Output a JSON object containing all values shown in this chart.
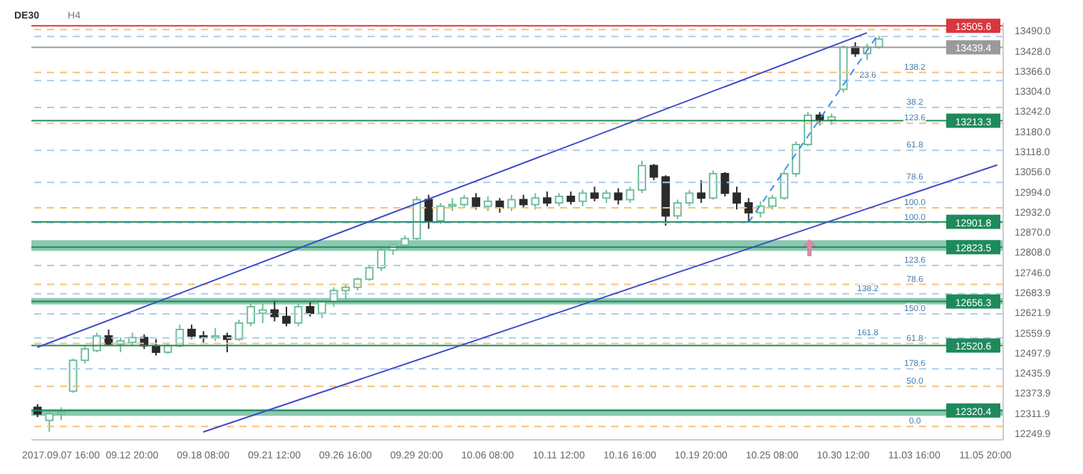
{
  "chart_data": {
    "type": "candlestick",
    "title": "DE30",
    "subtitle": "H4",
    "categories": [
      null,
      null,
      "2017.09.07  16:00",
      null,
      null,
      null,
      null,
      null,
      "09.12  20:00",
      null,
      null,
      null,
      null,
      null,
      "09.18  08:00",
      null,
      null,
      null,
      null,
      null,
      "09.21  12:00",
      null,
      null,
      null,
      null,
      null,
      "09.26  16:00",
      null,
      null,
      null,
      null,
      null,
      "09.29  20:00",
      null,
      null,
      null,
      null,
      null,
      "10.06  08:00",
      null,
      null,
      null,
      null,
      null,
      "10.11  12:00",
      null,
      null,
      null,
      null,
      null,
      "10.16  16:00",
      null,
      null,
      null,
      null,
      null,
      "10.19  20:00",
      null,
      null,
      null,
      null,
      null,
      "10.25  08:00",
      null,
      null,
      null,
      null,
      null,
      "10.30  12:00",
      null,
      null,
      null,
      null,
      null,
      "11.03  16:00",
      null,
      null,
      null,
      null,
      null,
      "11.05  20:00",
      null
    ],
    "ohlc": [
      [
        12330,
        12340,
        12300,
        12310
      ],
      [
        12290,
        12320,
        12255,
        12310
      ],
      [
        12310,
        12330,
        12290,
        12315
      ],
      [
        12380,
        12480,
        12375,
        12475
      ],
      [
        12475,
        12520,
        12465,
        12510
      ],
      [
        12505,
        12560,
        12500,
        12550
      ],
      [
        12550,
        12570,
        12520,
        12525
      ],
      [
        12525,
        12545,
        12500,
        12535
      ],
      [
        12530,
        12560,
        12520,
        12545
      ],
      [
        12545,
        12555,
        12510,
        12520
      ],
      [
        12520,
        12540,
        12490,
        12500
      ],
      [
        12500,
        12530,
        12495,
        12520
      ],
      [
        12520,
        12585,
        12515,
        12570
      ],
      [
        12570,
        12585,
        12540,
        12550
      ],
      [
        12550,
        12565,
        12530,
        12545
      ],
      [
        12545,
        12575,
        12535,
        12550
      ],
      [
        12550,
        12560,
        12500,
        12540
      ],
      [
        12540,
        12600,
        12535,
        12590
      ],
      [
        12590,
        12650,
        12580,
        12640
      ],
      [
        12620,
        12650,
        12590,
        12630
      ],
      [
        12630,
        12660,
        12595,
        12610
      ],
      [
        12610,
        12640,
        12580,
        12590
      ],
      [
        12590,
        12650,
        12580,
        12640
      ],
      [
        12640,
        12655,
        12610,
        12620
      ],
      [
        12620,
        12660,
        12605,
        12655
      ],
      [
        12655,
        12700,
        12640,
        12690
      ],
      [
        12690,
        12710,
        12660,
        12700
      ],
      [
        12700,
        12730,
        12690,
        12725
      ],
      [
        12725,
        12770,
        12720,
        12760
      ],
      [
        12760,
        12830,
        12750,
        12815
      ],
      [
        12815,
        12835,
        12800,
        12830
      ],
      [
        12830,
        12860,
        12820,
        12850
      ],
      [
        12850,
        12980,
        12845,
        12970
      ],
      [
        12970,
        12985,
        12880,
        12905
      ],
      [
        12905,
        12960,
        12895,
        12950
      ],
      [
        12950,
        12975,
        12935,
        12955
      ],
      [
        12955,
        12985,
        12945,
        12975
      ],
      [
        12975,
        12990,
        12940,
        12950
      ],
      [
        12950,
        12980,
        12935,
        12965
      ],
      [
        12965,
        12975,
        12930,
        12945
      ],
      [
        12945,
        12985,
        12935,
        12970
      ],
      [
        12970,
        12985,
        12945,
        12955
      ],
      [
        12955,
        12990,
        12940,
        12975
      ],
      [
        12975,
        12995,
        12950,
        12960
      ],
      [
        12960,
        12990,
        12950,
        12980
      ],
      [
        12980,
        12995,
        12955,
        12965
      ],
      [
        12965,
        13000,
        12950,
        12990
      ],
      [
        12990,
        13010,
        12965,
        12975
      ],
      [
        12975,
        13000,
        12960,
        12990
      ],
      [
        12990,
        13005,
        12955,
        12970
      ],
      [
        12970,
        13010,
        12960,
        13000
      ],
      [
        13000,
        13090,
        12990,
        13075
      ],
      [
        13075,
        13080,
        13030,
        13040
      ],
      [
        13040,
        13045,
        12890,
        12920
      ],
      [
        12920,
        12970,
        12910,
        12960
      ],
      [
        12960,
        13000,
        12950,
        12990
      ],
      [
        12990,
        13030,
        12960,
        12975
      ],
      [
        12975,
        13060,
        12970,
        13050
      ],
      [
        13050,
        13055,
        12980,
        12990
      ],
      [
        12990,
        13010,
        12940,
        12960
      ],
      [
        12960,
        12975,
        12900,
        12930
      ],
      [
        12930,
        12965,
        12915,
        12950
      ],
      [
        12950,
        12985,
        12940,
        12975
      ],
      [
        12975,
        13060,
        12970,
        13050
      ],
      [
        13050,
        13150,
        13040,
        13140
      ],
      [
        13140,
        13240,
        13135,
        13230
      ],
      [
        13230,
        13240,
        13200,
        13215
      ],
      [
        13215,
        13235,
        13200,
        13225
      ],
      [
        13310,
        13445,
        13300,
        13440
      ],
      [
        13440,
        13455,
        13410,
        13420
      ],
      [
        13420,
        13450,
        13400,
        13440
      ],
      [
        13440,
        13475,
        13435,
        13465
      ],
      null,
      null,
      null,
      null,
      null,
      null,
      null,
      null,
      null,
      null
    ],
    "series": [
      {
        "type": "line",
        "color": "#3f48c8",
        "values": [
          12515,
          null,
          null,
          null,
          null,
          null,
          null,
          null,
          null,
          null,
          null,
          null,
          null,
          null,
          null,
          null,
          null,
          null,
          null,
          null,
          null,
          null,
          null,
          null,
          null,
          null,
          null,
          null,
          null,
          null,
          null,
          null,
          null,
          null,
          null,
          null,
          null,
          null,
          null,
          null,
          null,
          null,
          null,
          null,
          null,
          null,
          null,
          null,
          null,
          null,
          null,
          null,
          null,
          null,
          null,
          null,
          null,
          null,
          null,
          null,
          null,
          null,
          null,
          null,
          null,
          null,
          null,
          null,
          null,
          null,
          13484,
          null,
          null,
          null,
          null,
          null,
          null,
          null,
          null,
          null,
          null,
          null
        ]
      },
      {
        "type": "line",
        "color": "#3f48c8",
        "values": [
          null,
          null,
          null,
          null,
          null,
          null,
          null,
          null,
          null,
          null,
          null,
          null,
          null,
          null,
          12254,
          null,
          null,
          null,
          null,
          null,
          null,
          null,
          null,
          null,
          null,
          null,
          null,
          null,
          null,
          null,
          null,
          null,
          null,
          null,
          null,
          null,
          null,
          null,
          null,
          null,
          null,
          null,
          null,
          null,
          null,
          null,
          null,
          null,
          null,
          null,
          null,
          null,
          null,
          null,
          null,
          null,
          null,
          null,
          null,
          null,
          null,
          null,
          null,
          null,
          null,
          null,
          null,
          null,
          null,
          null,
          null,
          null,
          null,
          null,
          null,
          null,
          null,
          null,
          null,
          null,
          null,
          13077
        ]
      },
      {
        "type": "line",
        "color": "#3d8fe0",
        "line_style": "dashed",
        "values": [
          null,
          null,
          null,
          null,
          null,
          null,
          null,
          null,
          null,
          null,
          null,
          null,
          null,
          null,
          null,
          null,
          null,
          null,
          null,
          null,
          null,
          null,
          null,
          null,
          null,
          null,
          null,
          null,
          null,
          null,
          null,
          null,
          null,
          null,
          null,
          null,
          null,
          null,
          null,
          null,
          null,
          null,
          null,
          null,
          null,
          null,
          null,
          null,
          null,
          null,
          null,
          null,
          null,
          null,
          null,
          null,
          null,
          null,
          null,
          null,
          12899,
          null,
          null,
          null,
          null,
          null,
          null,
          null,
          null,
          null,
          null,
          13482,
          null,
          null,
          null,
          null,
          null,
          null,
          null,
          null,
          null,
          null
        ]
      }
    ],
    "annotations": [
      {
        "text": "138.2",
        "y": 13362
      },
      {
        "text": "123.6",
        "y": 13205
      },
      {
        "text": "100.0",
        "y": 12945
      },
      {
        "text": "78.6",
        "y": 12709
      },
      {
        "text": "61.8",
        "y": 12527
      },
      {
        "text": "50.0",
        "y": 12395
      },
      {
        "text": "0.0",
        "y": 12271
      },
      {
        "text": "23.6",
        "y": 13337
      },
      {
        "text": "38.2",
        "y": 13254
      },
      {
        "text": "61.8",
        "y": 13122
      },
      {
        "text": "78.6",
        "y": 13023
      },
      {
        "text": "100.0",
        "y": 12899
      },
      {
        "text": "123.6",
        "y": 12767
      },
      {
        "text": "138.2",
        "y": 12680
      },
      {
        "text": "150.0",
        "y": 12618
      },
      {
        "text": "161.8",
        "y": 12544
      },
      {
        "text": "178.6",
        "y": 12449
      }
    ],
    "ylim": [
      12230,
      13515
    ],
    "yticks": [
      {
        "value": 13490,
        "label": "13490.0"
      },
      {
        "value": 13428,
        "label": "13428.0"
      },
      {
        "value": 13366,
        "label": "13366.0"
      },
      {
        "value": 13304,
        "label": "13304.0"
      },
      {
        "value": 13242,
        "label": "13242.0"
      },
      {
        "value": 13180,
        "label": "13180.0"
      },
      {
        "value": 13118,
        "label": "13118.0"
      },
      {
        "value": 13056,
        "label": "13056.0"
      },
      {
        "value": 12994,
        "label": "12994.0"
      },
      {
        "value": 12932,
        "label": "12932.0"
      },
      {
        "value": 12870,
        "label": "12870.0"
      },
      {
        "value": 12808,
        "label": "12808.0"
      },
      {
        "value": 12746,
        "label": "12746.0"
      },
      {
        "value": 12683.9,
        "label": "12683.9"
      },
      {
        "value": 12621.9,
        "label": "12621.9"
      },
      {
        "value": 12559.9,
        "label": "12559.9"
      },
      {
        "value": 12497.9,
        "label": "12497.9"
      },
      {
        "value": 12435.9,
        "label": "12435.9"
      },
      {
        "value": 12373.9,
        "label": "12373.9"
      },
      {
        "value": 12311.9,
        "label": "12311.9"
      },
      {
        "value": 12249.9,
        "label": "12249.9"
      }
    ],
    "bands": [
      {
        "axis": "y",
        "from": 12812,
        "to": 12845,
        "color": "#7fc2a6"
      },
      {
        "axis": "y",
        "from": 12647,
        "to": 12667,
        "color": "#7fc2a6"
      },
      {
        "axis": "y",
        "from": 12304,
        "to": 12325,
        "color": "#7fc2a6"
      }
    ],
    "ref_lines": [
      {
        "axis": "y",
        "value": 13494,
        "color": "#f7c07a",
        "line_style": "dashed"
      },
      {
        "axis": "y",
        "value": 13362,
        "color": "#f7c07a",
        "line_style": "dashed"
      },
      {
        "axis": "y",
        "value": 13205,
        "color": "#f7c07a",
        "line_style": "dashed"
      },
      {
        "axis": "y",
        "value": 12945,
        "color": "#f7c07a",
        "line_style": "dashed"
      },
      {
        "axis": "y",
        "value": 12709,
        "color": "#f7c07a",
        "line_style": "dashed"
      },
      {
        "axis": "y",
        "value": 12527,
        "color": "#f7c07a",
        "line_style": "dashed"
      },
      {
        "axis": "y",
        "value": 12395,
        "color": "#f7c07a",
        "line_style": "dashed"
      },
      {
        "axis": "y",
        "value": 12271,
        "color": "#f7c07a",
        "line_style": "dashed"
      },
      {
        "axis": "y",
        "value": 13473,
        "color": "#a9cdee",
        "line_style": "dashed"
      },
      {
        "axis": "y",
        "value": 13337,
        "color": "#a9cdee",
        "line_style": "dashed"
      },
      {
        "axis": "y",
        "value": 13254,
        "color": "#a9cdee",
        "line_style": "dashed"
      },
      {
        "axis": "y",
        "value": 13122,
        "color": "#a9cdee",
        "line_style": "dashed"
      },
      {
        "axis": "y",
        "value": 13023,
        "color": "#a9cdee",
        "line_style": "dashed"
      },
      {
        "axis": "y",
        "value": 12899,
        "color": "#a9cdee",
        "line_style": "dashed"
      },
      {
        "axis": "y",
        "value": 12767,
        "color": "#a9cdee",
        "line_style": "dashed"
      },
      {
        "axis": "y",
        "value": 12680,
        "color": "#a9cdee",
        "line_style": "dashed"
      },
      {
        "axis": "y",
        "value": 12618,
        "color": "#a9cdee",
        "line_style": "dashed"
      },
      {
        "axis": "y",
        "value": 12544,
        "color": "#a9cdee",
        "line_style": "dashed"
      },
      {
        "axis": "y",
        "value": 12449,
        "color": "#a9cdee",
        "line_style": "dashed"
      },
      {
        "axis": "y",
        "value": 13505.6,
        "label": "13505.6",
        "color": "#d9363e",
        "line_style": "solid"
      },
      {
        "axis": "y",
        "value": 13439.4,
        "label": "13439.4",
        "color": "#9a9a9a",
        "line_style": "solid"
      },
      {
        "axis": "y",
        "value": 13213.3,
        "label": "13213.3",
        "color": "#1e8a5c",
        "line_style": "solid"
      },
      {
        "axis": "y",
        "value": 12901.8,
        "label": "12901.8",
        "color": "#1e8a5c",
        "line_style": "solid"
      },
      {
        "axis": "y",
        "value": 12823.5,
        "label": "12823.5",
        "color": "#1e8a5c",
        "line_style": "solid"
      },
      {
        "axis": "y",
        "value": 12656.3,
        "label": "12656.3",
        "color": "#1e8a5c",
        "line_style": "solid"
      },
      {
        "axis": "y",
        "value": 12520.6,
        "label": "12520.6",
        "color": "#1e8a5c",
        "line_style": "solid"
      },
      {
        "axis": "y",
        "value": 12320.4,
        "label": "12320.4",
        "color": "#1e8a5c",
        "line_style": "solid"
      }
    ],
    "grid": false,
    "legend": false
  }
}
